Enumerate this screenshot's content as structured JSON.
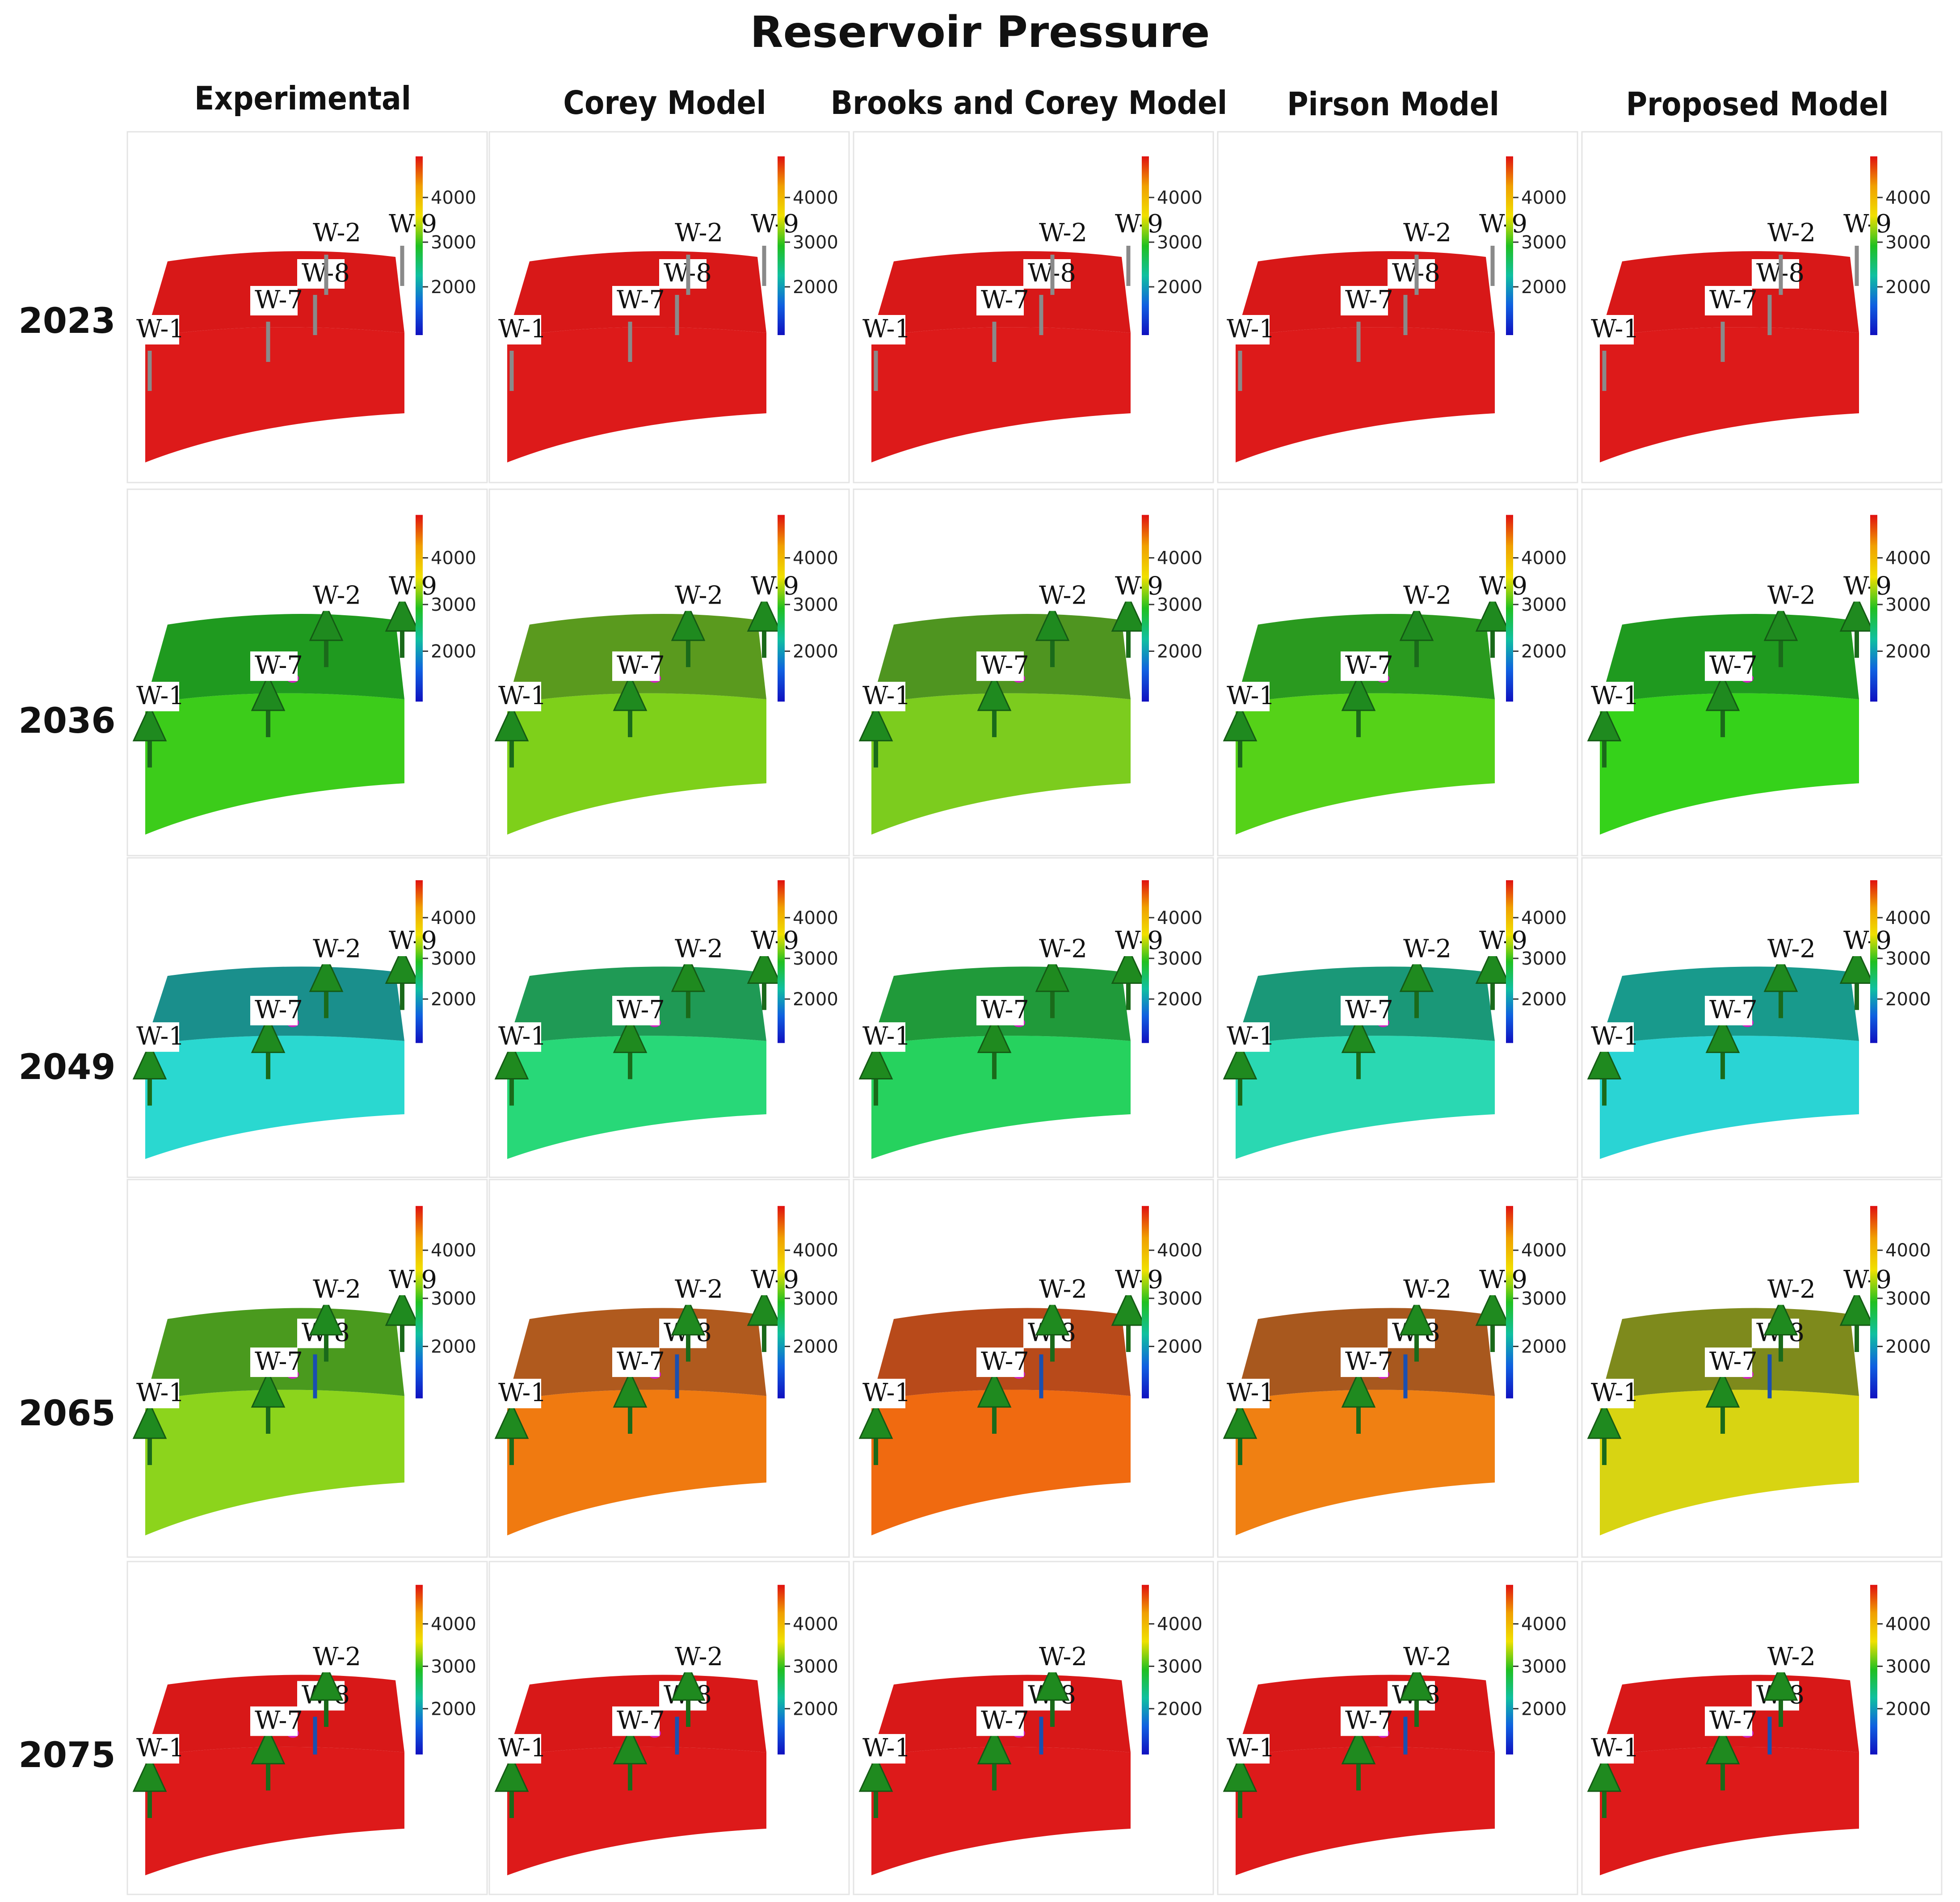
{
  "title": "Reservoir Pressure",
  "columns": [
    {
      "label": "Experimental"
    },
    {
      "label": "Corey Model"
    },
    {
      "label": "Brooks and Corey Model"
    },
    {
      "label": "Pirson Model"
    },
    {
      "label": "Proposed Model"
    }
  ],
  "rows": [
    {
      "label": "2023",
      "wells": "W-1,W-7,W-8,W-2,W-9",
      "arrows": false,
      "cells": [
        {
          "top": "#d81818",
          "front": "#dd1a1a"
        },
        {
          "top": "#d81818",
          "front": "#dd1a1a"
        },
        {
          "top": "#d81818",
          "front": "#dd1a1a"
        },
        {
          "top": "#d81818",
          "front": "#dd1a1a"
        },
        {
          "top": "#d81818",
          "front": "#dd1a1a"
        }
      ]
    },
    {
      "label": "2036",
      "wells": "W-1,W-7,W-2,W-9",
      "arrows": true,
      "cells": [
        {
          "top": "#1f9a1f",
          "front": "#3ccc1a"
        },
        {
          "top": "#5a9a1e",
          "front": "#7ed01a"
        },
        {
          "top": "#4f9520",
          "front": "#7ccc1e"
        },
        {
          "top": "#2a9a1f",
          "front": "#55d218"
        },
        {
          "top": "#1f9a1f",
          "front": "#35d21a"
        }
      ]
    },
    {
      "label": "2049",
      "wells": "W-1,W-7,W-2,W-9",
      "arrows": true,
      "cells": [
        {
          "top": "#1a8f8c",
          "front": "#2ad8d0"
        },
        {
          "top": "#1f9a55",
          "front": "#28d878"
        },
        {
          "top": "#209a3a",
          "front": "#26d25e"
        },
        {
          "top": "#1a9878",
          "front": "#2ad8b2"
        },
        {
          "top": "#189a8c",
          "front": "#2ad4d4"
        }
      ]
    },
    {
      "label": "2065",
      "wells": "W-1,W-7,W-8,W-2,W-9",
      "arrows": true,
      "cells": [
        {
          "top": "#4a9a1e",
          "front": "#8cd41c"
        },
        {
          "top": "#b05a1e",
          "front": "#f07a10"
        },
        {
          "top": "#b84a1a",
          "front": "#f06a10"
        },
        {
          "top": "#a8581e",
          "front": "#f08012"
        },
        {
          "top": "#7e8a1c",
          "front": "#d8d412"
        }
      ]
    },
    {
      "label": "2075",
      "wells": "W-1,W-7,W-8,W-2",
      "arrows": true,
      "cells": [
        {
          "top": "#d81818",
          "front": "#dd1a1a"
        },
        {
          "top": "#d81818",
          "front": "#dd1a1a"
        },
        {
          "top": "#d81818",
          "front": "#dd1a1a"
        },
        {
          "top": "#d81818",
          "front": "#dd1a1a"
        },
        {
          "top": "#d81818",
          "front": "#dd1a1a"
        }
      ]
    }
  ],
  "colorbar": {
    "ticks": [
      "4000",
      "3000",
      "2000"
    ],
    "stops": [
      "#e01010",
      "#f0a000",
      "#f0e000",
      "#20c020",
      "#10c0a0",
      "#1060e0",
      "#1010c0"
    ]
  },
  "colors": {
    "arrow": "#1f8a1f",
    "well_line": "#8a8a8a",
    "producer_dot": "#d020c0",
    "label_bg": "#ffffff"
  }
}
